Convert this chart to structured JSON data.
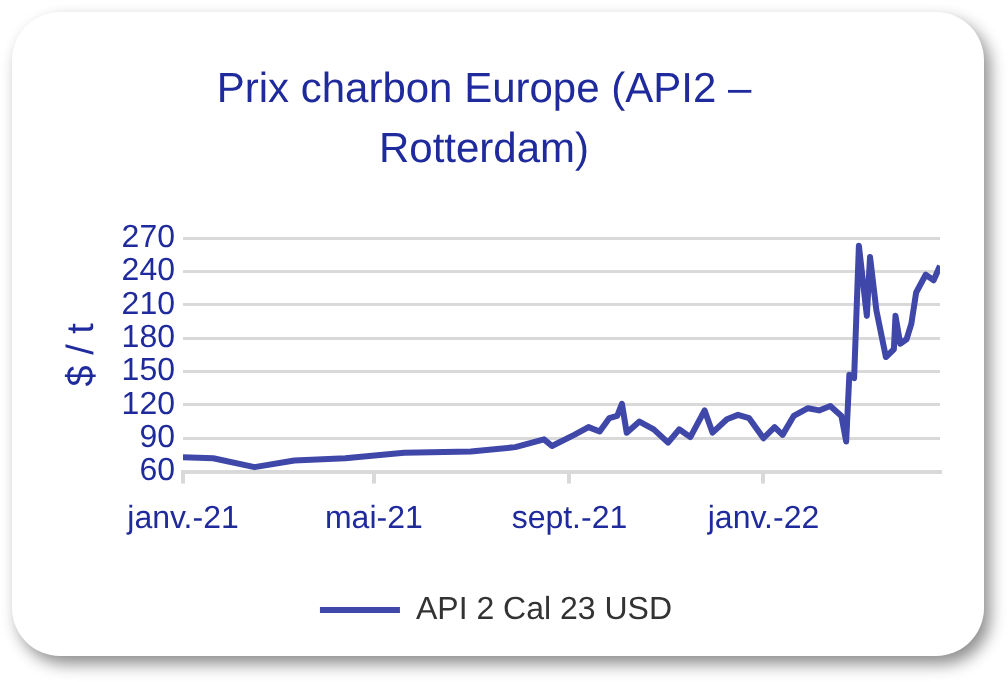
{
  "chart_data": {
    "type": "line",
    "title": "Prix charbon Europe (API2 – Rotterdam)",
    "ylabel": "$ / t",
    "x": [
      "2021-01-01",
      "2021-01-20",
      "2021-02-15",
      "2021-03-12",
      "2021-04-13",
      "2021-05-20",
      "2021-07-01",
      "2021-07-29",
      "2021-08-16",
      "2021-08-21",
      "2021-09-04",
      "2021-09-13",
      "2021-09-20",
      "2021-09-26",
      "2021-10-01",
      "2021-10-04",
      "2021-10-07",
      "2021-10-15",
      "2021-10-24",
      "2021-11-02",
      "2021-11-09",
      "2021-11-16",
      "2021-11-25",
      "2021-11-30",
      "2021-12-09",
      "2021-12-16",
      "2021-12-23",
      "2022-01-01",
      "2022-01-08",
      "2022-01-13",
      "2022-01-20",
      "2022-01-29",
      "2022-02-05",
      "2022-02-12",
      "2022-02-19",
      "2022-02-22",
      "2022-02-24",
      "2022-02-27",
      "2022-03-02",
      "2022-03-07",
      "2022-03-09",
      "2022-03-13",
      "2022-03-19",
      "2022-03-24",
      "2022-03-25",
      "2022-03-28",
      "2022-04-01",
      "2022-04-04",
      "2022-04-07",
      "2022-04-13",
      "2022-04-18",
      "2022-04-22"
    ],
    "series": [
      {
        "name": "API 2 Cal 23 USD",
        "color": "#3f48a8",
        "values": [
          73,
          72,
          64,
          70,
          72,
          77,
          78,
          82,
          89,
          83,
          93,
          100,
          96,
          108,
          110,
          121,
          95,
          105,
          98,
          86,
          98,
          91,
          115,
          95,
          107,
          111,
          108,
          90,
          100,
          93,
          110,
          117,
          115,
          119,
          110,
          87,
          147,
          144,
          263,
          200,
          253,
          205,
          163,
          170,
          200,
          175,
          179,
          193,
          221,
          237,
          232,
          245
        ]
      }
    ],
    "xlim": [
      "2021-01-01",
      "2022-04-22"
    ],
    "xticks": [
      {
        "value": "2021-01-01",
        "label": "janv.-21"
      },
      {
        "value": "2021-05-01",
        "label": "mai-21"
      },
      {
        "value": "2021-09-01",
        "label": "sept.-21"
      },
      {
        "value": "2022-01-01",
        "label": "janv.-22"
      }
    ],
    "ylim": [
      60,
      270
    ],
    "yticks": [
      60,
      90,
      120,
      150,
      180,
      210,
      240,
      270
    ],
    "grid": "y",
    "legend": "bottom",
    "marker": "none",
    "line_style": "solid"
  }
}
